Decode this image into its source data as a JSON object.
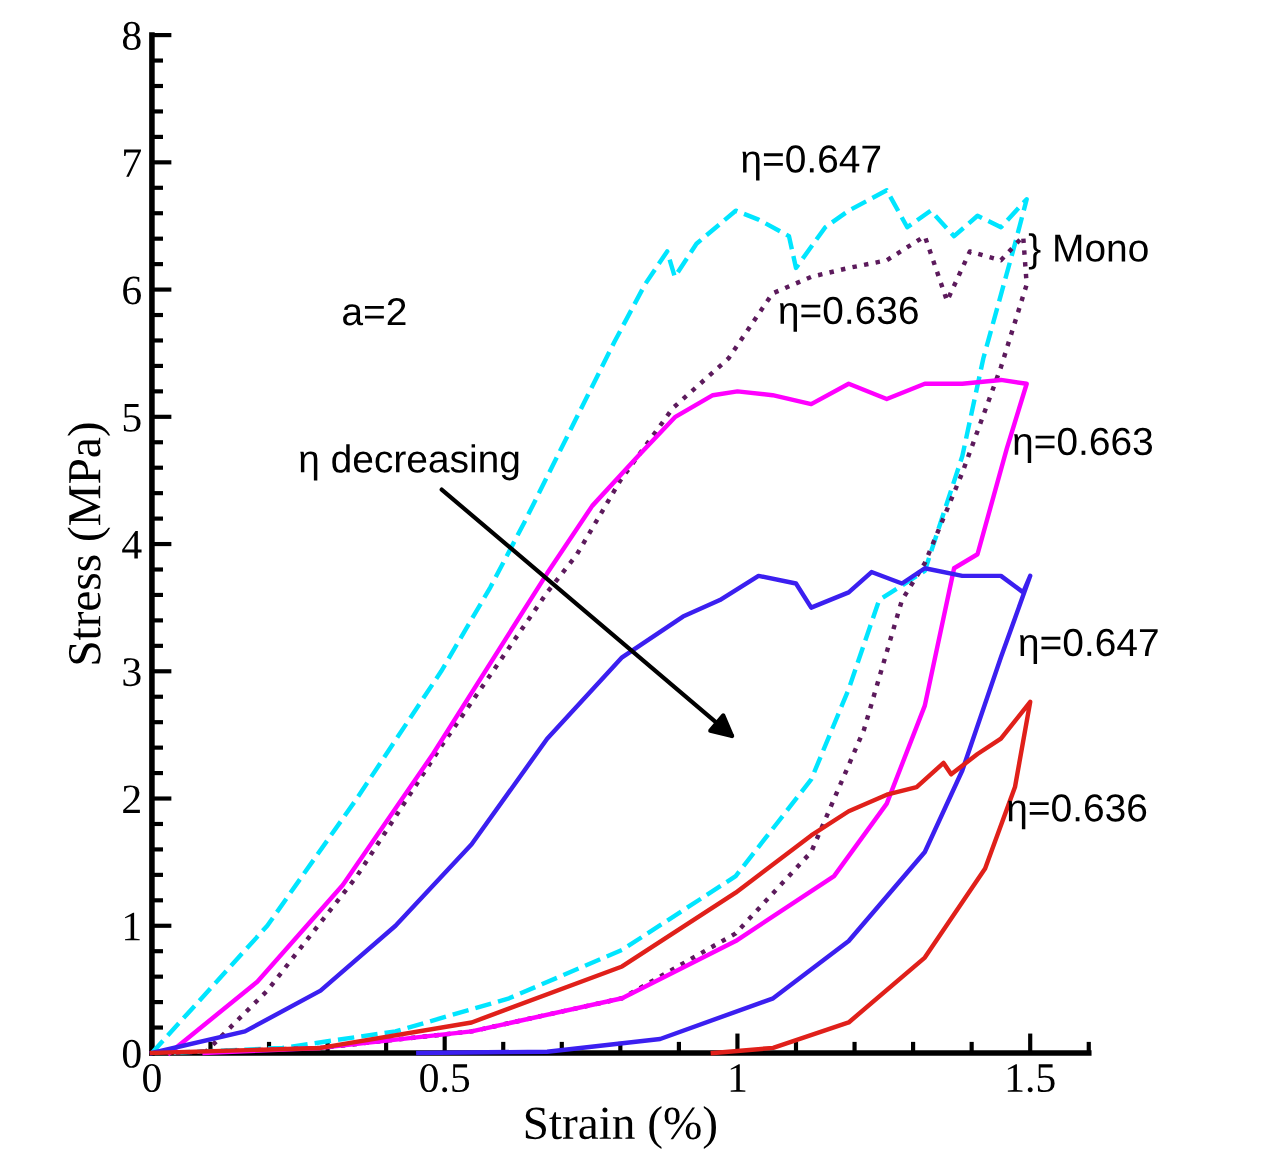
{
  "chart_data": {
    "type": "line",
    "xlabel": "Strain (%)",
    "ylabel": "Stress (MPa)",
    "xlim": [
      0,
      1.6
    ],
    "ylim": [
      0,
      8
    ],
    "xticks": [
      0,
      0.5,
      1,
      1.5
    ],
    "yticks": [
      0,
      1,
      2,
      3,
      4,
      5,
      6,
      7,
      8
    ],
    "grid": false,
    "legend": false,
    "marker": "none",
    "series": [
      {
        "name": "η=0.647",
        "color": "#00e5ff",
        "line_style": "dashed",
        "x": [
          0,
          0.197,
          0.35,
          0.494,
          0.578,
          0.636,
          0.713,
          0.79,
          0.842,
          0.88,
          0.893,
          0.93,
          0.997,
          1.036,
          1.088,
          1.1,
          1.15,
          1.19,
          1.255,
          1.29,
          1.33,
          1.37,
          1.41,
          1.45,
          1.494,
          1.474,
          1.42,
          1.384,
          1.32,
          1.242,
          1.19,
          1.126,
          0.997,
          0.803,
          0.61,
          0.416,
          0.223,
          0.03
        ],
        "values": [
          0,
          1,
          2,
          3,
          3.66,
          4.17,
          4.88,
          5.59,
          6.04,
          6.3,
          6.1,
          6.36,
          6.62,
          6.55,
          6.42,
          6.17,
          6.49,
          6.62,
          6.78,
          6.49,
          6.62,
          6.42,
          6.58,
          6.49,
          6.71,
          6.36,
          5.46,
          4.69,
          3.79,
          3.56,
          2.86,
          2.15,
          1.39,
          0.81,
          0.43,
          0.17,
          0.04,
          0
        ]
      },
      {
        "name": "η=0.636",
        "color": "#5c1a5c",
        "line_style": "dotted",
        "x": [
          0.09,
          0.197,
          0.35,
          0.494,
          0.675,
          0.726,
          0.8,
          0.89,
          0.985,
          1.06,
          1.126,
          1.19,
          1.255,
          1.32,
          1.358,
          1.397,
          1.45,
          1.488,
          1.494,
          1.45,
          1.384,
          1.32,
          1.281,
          1.216,
          1.126,
          0.997,
          0.803,
          0.546,
          0.288,
          0.03
        ],
        "values": [
          0,
          0.49,
          1.39,
          2.41,
          3.62,
          3.92,
          4.5,
          5.07,
          5.46,
          5.97,
          6.1,
          6.17,
          6.23,
          6.42,
          5.91,
          6.3,
          6.23,
          6.42,
          6.04,
          5.39,
          4.56,
          3.85,
          3.56,
          2.54,
          1.58,
          0.94,
          0.43,
          0.17,
          0.04,
          0
        ]
      },
      {
        "name": "η=0.663",
        "color": "#ff00ff",
        "line_style": "solid",
        "x": [
          0.03,
          0.18,
          0.326,
          0.48,
          0.675,
          0.752,
          0.83,
          0.894,
          0.958,
          1.0,
          1.06,
          1.126,
          1.19,
          1.255,
          1.32,
          1.384,
          1.45,
          1.494,
          1.46,
          1.41,
          1.37,
          1.32,
          1.255,
          1.165,
          0.997,
          0.803,
          0.546,
          0.288,
          0.09
        ],
        "values": [
          0,
          0.56,
          1.32,
          2.35,
          3.77,
          4.3,
          4.69,
          5.0,
          5.17,
          5.2,
          5.17,
          5.1,
          5.26,
          5.14,
          5.26,
          5.26,
          5.29,
          5.26,
          4.75,
          3.92,
          3.81,
          2.73,
          1.96,
          1.39,
          0.88,
          0.43,
          0.17,
          0.04,
          0
        ]
      },
      {
        "name": "η=0.647",
        "color": "#3b1ff0",
        "line_style": "solid",
        "x": [
          0,
          0.159,
          0.288,
          0.416,
          0.546,
          0.675,
          0.803,
          0.907,
          0.97,
          1.036,
          1.1,
          1.126,
          1.19,
          1.229,
          1.281,
          1.32,
          1.384,
          1.45,
          1.488,
          1.5,
          1.45,
          1.384,
          1.32,
          1.19,
          1.061,
          0.868,
          0.675,
          0.455
        ],
        "values": [
          0,
          0.17,
          0.49,
          1.0,
          1.64,
          2.47,
          3.11,
          3.43,
          3.56,
          3.75,
          3.69,
          3.5,
          3.62,
          3.78,
          3.69,
          3.81,
          3.75,
          3.75,
          3.62,
          3.75,
          3.11,
          2.22,
          1.58,
          0.88,
          0.43,
          0.11,
          0.01,
          0
        ]
      },
      {
        "name": "η=0.636",
        "color": "#e0201a",
        "line_style": "solid",
        "x": [
          0,
          0.288,
          0.546,
          0.803,
          0.997,
          1.126,
          1.19,
          1.255,
          1.306,
          1.352,
          1.365,
          1.41,
          1.45,
          1.5,
          1.474,
          1.423,
          1.32,
          1.19,
          1.061,
          0.958
        ],
        "values": [
          0,
          0.04,
          0.24,
          0.68,
          1.26,
          1.71,
          1.9,
          2.03,
          2.09,
          2.28,
          2.19,
          2.35,
          2.47,
          2.76,
          2.09,
          1.45,
          0.75,
          0.24,
          0.04,
          0
        ]
      }
    ],
    "annotations": [
      "} Mono",
      "a=2",
      "η decreasing"
    ]
  }
}
